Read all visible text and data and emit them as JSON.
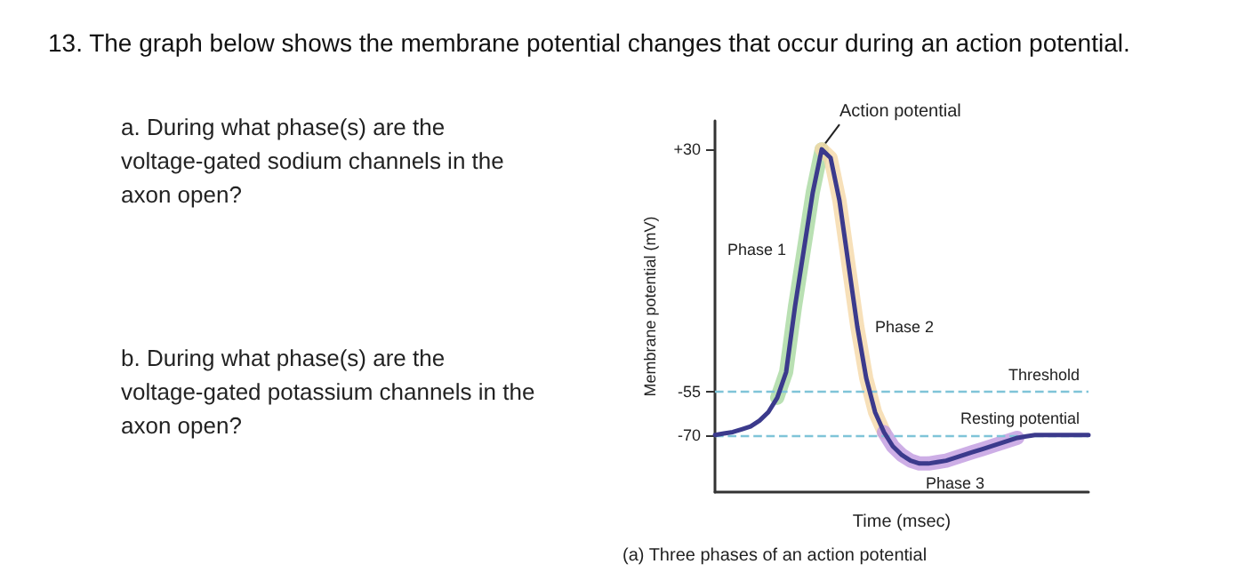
{
  "chart_data": {
    "type": "line",
    "title": "13. The graph below shows the membrane potential changes that occur during an action potential.",
    "xlabel": "Time (msec)",
    "ylabel": "Membrane potential (mV)",
    "categories": [
      null,
      null,
      null,
      null,
      null,
      null,
      null,
      null,
      null,
      null,
      null,
      null,
      null,
      null,
      null,
      null,
      null,
      null,
      null,
      null,
      null,
      null,
      null,
      null,
      null,
      null,
      null,
      null,
      null,
      null,
      null,
      null,
      null,
      null,
      null,
      null,
      null,
      null,
      null,
      null,
      null,
      null,
      null
    ],
    "series": [
      {
        "name": "Phase 1",
        "color": "#a8d8a0",
        "values": [
          null,
          null,
          null,
          null,
          null,
          null,
          null,
          -57,
          -48,
          -25,
          -5,
          15,
          30,
          null,
          null,
          null,
          null,
          null,
          null,
          null,
          null,
          null,
          null,
          null,
          null,
          null,
          null,
          null,
          null,
          null,
          null,
          null,
          null,
          null,
          null,
          null,
          null,
          null,
          null,
          null,
          null,
          null,
          null
        ]
      },
      {
        "name": "Phase 2",
        "color": "#f5d8a8",
        "values": [
          null,
          null,
          null,
          null,
          null,
          null,
          null,
          null,
          null,
          null,
          null,
          null,
          30,
          27,
          12,
          -10,
          -32,
          -50,
          -62,
          -69,
          null,
          null,
          null,
          null,
          null,
          null,
          null,
          null,
          null,
          null,
          null,
          null,
          null,
          null,
          null,
          null,
          null,
          null,
          null,
          null,
          null,
          null,
          null
        ]
      },
      {
        "name": "Phase 3",
        "color": "#c09ae0",
        "values": [
          null,
          null,
          null,
          null,
          null,
          null,
          null,
          null,
          null,
          null,
          null,
          null,
          null,
          null,
          null,
          null,
          null,
          null,
          null,
          -69,
          -74,
          -77,
          -79,
          -80,
          -80,
          -79.5,
          -79,
          -78,
          -77,
          -76,
          -75,
          -74,
          -73,
          -72,
          -71,
          null,
          null,
          null,
          null,
          null,
          null,
          null,
          null
        ]
      },
      {
        "color": "#3b3a8c",
        "values": [
          -70,
          -69.5,
          -69,
          -68,
          -67,
          -65,
          -62,
          -57,
          -48,
          -25,
          -5,
          15,
          30,
          27,
          12,
          -10,
          -32,
          -50,
          -62,
          -69,
          -74,
          -77,
          -79,
          -80,
          -80,
          -79.5,
          -79,
          -78,
          -77,
          -76,
          -75,
          -74,
          -73,
          -72,
          -71,
          -70.5,
          -70,
          -70,
          -70,
          -70,
          -70,
          -70,
          -70
        ]
      }
    ],
    "ylim": [
      -90,
      40
    ],
    "yticks": [
      {
        "value": 30,
        "label": "+30"
      },
      -55,
      -70
    ],
    "ref_lines": [
      {
        "axis": "y",
        "value": -55,
        "label": "Threshold",
        "color": "#7fc4d8",
        "line_style": "dashed"
      },
      {
        "axis": "y",
        "value": -70,
        "label": "Resting potential",
        "color": "#7fc4d8",
        "line_style": "dashed"
      }
    ],
    "annotations": [
      "a. During what phase(s) are the voltage-gated sodium channels in the axon open?",
      "b. During what phase(s) are the voltage-gated potassium channels in the axon open?",
      "Action potential",
      "(a) Three phases of an action potential"
    ],
    "grid": false,
    "legend": false,
    "marker": "none",
    "line_style": "solid"
  }
}
